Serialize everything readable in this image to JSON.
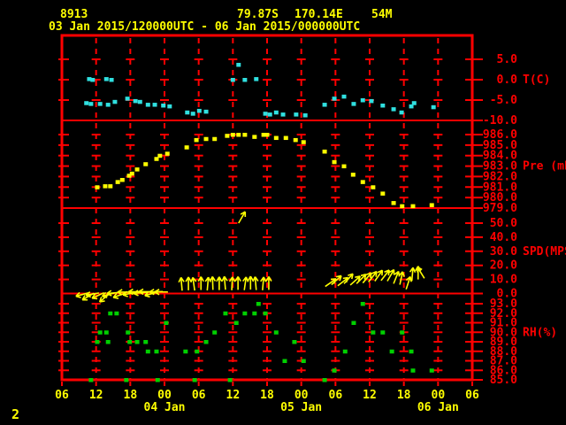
{
  "header": {
    "station_id": "8913",
    "latitude": "79.87S",
    "longitude": "170.14E",
    "elevation": "54M",
    "period": "03 Jan 2015/120000UTC - 06 Jan 2015/000000UTC"
  },
  "footer": {
    "page_number": "2"
  },
  "colors": {
    "background": "#000000",
    "frame": "#ff0000",
    "axis_text": "#ff0000",
    "time_text": "#ffff00",
    "temperature": "#30e0e0",
    "pressure": "#ffff00",
    "wind": "#ffff00",
    "humidity": "#00d000"
  },
  "chart_data": {
    "type": "scatter",
    "subtype": "meteogram-4-panel",
    "x_axis": {
      "tick_interval_hours": 6,
      "hours_span": 72,
      "tick_labels": [
        "06",
        "12",
        "18",
        "00",
        "06",
        "12",
        "18",
        "00",
        "06",
        "12",
        "18",
        "00",
        "06"
      ],
      "date_labels": [
        {
          "label": "04 Jan",
          "tick_index": 3
        },
        {
          "label": "05 Jan",
          "tick_index": 7
        },
        {
          "label": "06 Jan",
          "tick_index": 11
        }
      ]
    },
    "panels": [
      {
        "id": "temperature",
        "label": "T(C)",
        "label_at_value": 0,
        "type": "scatter",
        "color": "#30e0e0",
        "axis_ticks": [
          {
            "v": 5,
            "label": "5.0"
          },
          {
            "v": 0,
            "label": "0.0"
          },
          {
            "v": -5,
            "label": "-5.0"
          },
          {
            "v": -10,
            "label": "-10.0"
          }
        ],
        "points": [
          {
            "h": 4.8,
            "v": 0.2
          },
          {
            "h": 5.4,
            "v": 0
          },
          {
            "h": 7.8,
            "v": 0.2
          },
          {
            "h": 8.7,
            "v": 0
          },
          {
            "h": 4.3,
            "v": -5.7
          },
          {
            "h": 5.1,
            "v": -5.9
          },
          {
            "h": 6.7,
            "v": -5.9
          },
          {
            "h": 8.1,
            "v": -6.1
          },
          {
            "h": 9.3,
            "v": -5.4
          },
          {
            "h": 11.5,
            "v": -4.6
          },
          {
            "h": 12.9,
            "v": -5.2
          },
          {
            "h": 13.7,
            "v": -5.4
          },
          {
            "h": 15.1,
            "v": -6.1
          },
          {
            "h": 16.3,
            "v": -6.1
          },
          {
            "h": 17.8,
            "v": -6.3
          },
          {
            "h": 18.9,
            "v": -6.5
          },
          {
            "h": 22.0,
            "v": -8.0
          },
          {
            "h": 23.0,
            "v": -8.3
          },
          {
            "h": 24.1,
            "v": -7.6
          },
          {
            "h": 25.3,
            "v": -7.8
          },
          {
            "h": 30.0,
            "v": 0
          },
          {
            "h": 31.0,
            "v": 3.7
          },
          {
            "h": 32.1,
            "v": 0
          },
          {
            "h": 34.1,
            "v": 0.2
          },
          {
            "h": 35.7,
            "v": -8.3
          },
          {
            "h": 36.5,
            "v": -8.5
          },
          {
            "h": 37.6,
            "v": -8.0
          },
          {
            "h": 38.8,
            "v": -8.5
          },
          {
            "h": 41.1,
            "v": -8.5
          },
          {
            "h": 42.7,
            "v": -8.7
          },
          {
            "h": 46.1,
            "v": -6.1
          },
          {
            "h": 47.8,
            "v": -4.6
          },
          {
            "h": 49.5,
            "v": -4.1
          },
          {
            "h": 51.2,
            "v": -5.9
          },
          {
            "h": 52.8,
            "v": -5.0
          },
          {
            "h": 54.3,
            "v": -5.2
          },
          {
            "h": 56.3,
            "v": -6.3
          },
          {
            "h": 58.2,
            "v": -7.2
          },
          {
            "h": 59.6,
            "v": -8.0
          },
          {
            "h": 61.3,
            "v": -6.5
          },
          {
            "h": 61.8,
            "v": -5.7
          },
          {
            "h": 65.2,
            "v": -6.7
          }
        ]
      },
      {
        "id": "pressure",
        "label": "Pre (mb)",
        "label_at_value": 983,
        "type": "scatter",
        "color": "#ffff00",
        "axis_ticks": [
          {
            "v": 986,
            "label": "986.0"
          },
          {
            "v": 985,
            "label": "985.0"
          },
          {
            "v": 984,
            "label": "984.0"
          },
          {
            "v": 983,
            "label": "983.0"
          },
          {
            "v": 982,
            "label": "982.0"
          },
          {
            "v": 981,
            "label": "981.0"
          },
          {
            "v": 980,
            "label": "980.0"
          },
          {
            "v": 979,
            "label": "979.0"
          }
        ],
        "points": [
          {
            "h": 6.2,
            "v": 981.0
          },
          {
            "h": 7.6,
            "v": 981.1
          },
          {
            "h": 8.5,
            "v": 981.1
          },
          {
            "h": 9.8,
            "v": 981.5
          },
          {
            "h": 10.6,
            "v": 981.7
          },
          {
            "h": 11.8,
            "v": 982.1
          },
          {
            "h": 12.3,
            "v": 982.3
          },
          {
            "h": 13.2,
            "v": 982.7
          },
          {
            "h": 14.7,
            "v": 983.2
          },
          {
            "h": 16.6,
            "v": 983.7
          },
          {
            "h": 17.2,
            "v": 984.0
          },
          {
            "h": 18.5,
            "v": 984.2
          },
          {
            "h": 21.9,
            "v": 984.8
          },
          {
            "h": 23.6,
            "v": 985.5
          },
          {
            "h": 25.3,
            "v": 985.6
          },
          {
            "h": 26.8,
            "v": 985.6
          },
          {
            "h": 29.0,
            "v": 985.9
          },
          {
            "h": 30.0,
            "v": 986.0
          },
          {
            "h": 31.0,
            "v": 986.0
          },
          {
            "h": 32.1,
            "v": 986.0
          },
          {
            "h": 33.8,
            "v": 985.8
          },
          {
            "h": 35.4,
            "v": 986.0
          },
          {
            "h": 36.0,
            "v": 986.0
          },
          {
            "h": 37.6,
            "v": 985.7
          },
          {
            "h": 39.3,
            "v": 985.7
          },
          {
            "h": 41.0,
            "v": 985.5
          },
          {
            "h": 42.4,
            "v": 985.3
          },
          {
            "h": 46.1,
            "v": 984.4
          },
          {
            "h": 47.8,
            "v": 983.4
          },
          {
            "h": 49.5,
            "v": 983.0
          },
          {
            "h": 51.1,
            "v": 982.2
          },
          {
            "h": 52.8,
            "v": 981.5
          },
          {
            "h": 54.6,
            "v": 981.0
          },
          {
            "h": 56.3,
            "v": 980.4
          },
          {
            "h": 58.2,
            "v": 979.5
          },
          {
            "h": 59.7,
            "v": 979.2
          },
          {
            "h": 61.6,
            "v": 979.2
          },
          {
            "h": 64.9,
            "v": 979.3
          }
        ]
      },
      {
        "id": "wind_speed",
        "label": "SPD(MPS)",
        "label_at_value": 30,
        "type": "wind-vector",
        "color": "#ffff00",
        "axis_ticks": [
          {
            "v": 50,
            "label": "50.0"
          },
          {
            "v": 40,
            "label": "40.0"
          },
          {
            "v": 30,
            "label": "30.0"
          },
          {
            "v": 20,
            "label": "20.0"
          },
          {
            "v": 10,
            "label": "10.0"
          },
          {
            "v": 0,
            "label": "0.0"
          }
        ],
        "points": [
          {
            "h": 4.7,
            "v": 0.5,
            "dir": 255
          },
          {
            "h": 5.6,
            "v": 0.2,
            "dir": 240
          },
          {
            "h": 6.5,
            "v": 0.4,
            "dir": 260
          },
          {
            "h": 7.4,
            "v": 0.6,
            "dir": 245
          },
          {
            "h": 8.4,
            "v": 0.1,
            "dir": 230
          },
          {
            "h": 9.3,
            "v": 0.5,
            "dir": 255
          },
          {
            "h": 10.2,
            "v": 0.8,
            "dir": 265
          },
          {
            "h": 11.2,
            "v": 0.4,
            "dir": 250
          },
          {
            "h": 12.1,
            "v": 1.0,
            "dir": 270
          },
          {
            "h": 13.0,
            "v": 0.7,
            "dir": 260
          },
          {
            "h": 14.0,
            "v": 1.2,
            "dir": 270
          },
          {
            "h": 14.9,
            "v": 0.9,
            "dir": 265
          },
          {
            "h": 15.8,
            "v": 1.3,
            "dir": 270
          },
          {
            "h": 16.8,
            "v": 1.0,
            "dir": 255
          },
          {
            "h": 17.7,
            "v": 1.4,
            "dir": 268
          },
          {
            "h": 18.6,
            "v": 1.1,
            "dir": 270
          },
          {
            "h": 21.1,
            "v": 2.0,
            "dir": 355
          },
          {
            "h": 22.2,
            "v": 2.3,
            "dir": 0
          },
          {
            "h": 23.3,
            "v": 2.1,
            "dir": 352
          },
          {
            "h": 24.4,
            "v": 2.5,
            "dir": 0
          },
          {
            "h": 25.5,
            "v": 2.2,
            "dir": 5
          },
          {
            "h": 26.5,
            "v": 2.6,
            "dir": 358
          },
          {
            "h": 27.6,
            "v": 2.4,
            "dir": 0
          },
          {
            "h": 28.7,
            "v": 2.7,
            "dir": 355
          },
          {
            "h": 29.8,
            "v": 2.3,
            "dir": 3
          },
          {
            "h": 30.9,
            "v": 2.6,
            "dir": 0
          },
          {
            "h": 32.0,
            "v": 2.4,
            "dir": 8
          },
          {
            "h": 33.1,
            "v": 2.8,
            "dir": 0
          },
          {
            "h": 34.1,
            "v": 2.5,
            "dir": 355
          },
          {
            "h": 35.2,
            "v": 2.3,
            "dir": 5
          },
          {
            "h": 36.3,
            "v": 2.6,
            "dir": 0
          },
          {
            "h": 31.0,
            "v": 50,
            "dir": 30
          },
          {
            "h": 46.2,
            "v": 5.0,
            "dir": 55
          },
          {
            "h": 47.3,
            "v": 6.3,
            "dir": 48
          },
          {
            "h": 48.4,
            "v": 5.5,
            "dir": 52
          },
          {
            "h": 49.5,
            "v": 7.0,
            "dir": 42
          },
          {
            "h": 50.6,
            "v": 6.0,
            "dir": 48
          },
          {
            "h": 51.7,
            "v": 7.0,
            "dir": 45
          },
          {
            "h": 52.8,
            "v": 7.5,
            "dir": 40
          },
          {
            "h": 53.8,
            "v": 8.2,
            "dir": 38
          },
          {
            "h": 54.9,
            "v": 8.8,
            "dir": 35
          },
          {
            "h": 56.0,
            "v": 9.2,
            "dir": 38
          },
          {
            "h": 57.1,
            "v": 8.8,
            "dir": 30
          },
          {
            "h": 58.2,
            "v": 7.0,
            "dir": 22
          },
          {
            "h": 59.3,
            "v": 6.3,
            "dir": 12
          },
          {
            "h": 60.4,
            "v": 3.0,
            "dir": 18
          },
          {
            "h": 61.4,
            "v": 9.0,
            "dir": 5
          },
          {
            "h": 62.5,
            "v": 10.0,
            "dir": 0
          },
          {
            "h": 63.6,
            "v": 10.8,
            "dir": -32
          }
        ]
      },
      {
        "id": "relative_humidity",
        "label": "RH(%)",
        "label_at_value": 90,
        "type": "scatter",
        "color": "#00d000",
        "axis_ticks": [
          {
            "v": 93,
            "label": "93.0"
          },
          {
            "v": 92,
            "label": "92.0"
          },
          {
            "v": 91,
            "label": "91.0"
          },
          {
            "v": 90,
            "label": "90.0"
          },
          {
            "v": 89,
            "label": "89.0"
          },
          {
            "v": 88,
            "label": "88.0"
          },
          {
            "v": 87,
            "label": "87.0"
          },
          {
            "v": 86,
            "label": "86.0"
          },
          {
            "v": 85,
            "label": "85.0"
          }
        ],
        "points": [
          {
            "h": 5.1,
            "v": 85
          },
          {
            "h": 6.2,
            "v": 89
          },
          {
            "h": 6.7,
            "v": 90
          },
          {
            "h": 7.8,
            "v": 90
          },
          {
            "h": 8.1,
            "v": 89
          },
          {
            "h": 8.5,
            "v": 92
          },
          {
            "h": 9.6,
            "v": 92
          },
          {
            "h": 11.3,
            "v": 85
          },
          {
            "h": 11.6,
            "v": 90
          },
          {
            "h": 11.9,
            "v": 89
          },
          {
            "h": 13.2,
            "v": 89
          },
          {
            "h": 14.7,
            "v": 89
          },
          {
            "h": 15.1,
            "v": 88
          },
          {
            "h": 16.6,
            "v": 88
          },
          {
            "h": 16.8,
            "v": 85
          },
          {
            "h": 18.3,
            "v": 91
          },
          {
            "h": 21.7,
            "v": 88
          },
          {
            "h": 23.3,
            "v": 85
          },
          {
            "h": 23.7,
            "v": 88
          },
          {
            "h": 25.3,
            "v": 89
          },
          {
            "h": 26.8,
            "v": 90
          },
          {
            "h": 28.7,
            "v": 92
          },
          {
            "h": 29.5,
            "v": 85
          },
          {
            "h": 30.6,
            "v": 91
          },
          {
            "h": 32.1,
            "v": 92
          },
          {
            "h": 33.8,
            "v": 92
          },
          {
            "h": 34.5,
            "v": 93
          },
          {
            "h": 35.7,
            "v": 92
          },
          {
            "h": 37.6,
            "v": 90
          },
          {
            "h": 39.1,
            "v": 87
          },
          {
            "h": 40.8,
            "v": 89
          },
          {
            "h": 42.4,
            "v": 87
          },
          {
            "h": 46.1,
            "v": 85
          },
          {
            "h": 47.8,
            "v": 86
          },
          {
            "h": 49.7,
            "v": 88
          },
          {
            "h": 51.2,
            "v": 91
          },
          {
            "h": 52.8,
            "v": 93
          },
          {
            "h": 54.6,
            "v": 90
          },
          {
            "h": 56.3,
            "v": 90
          },
          {
            "h": 57.9,
            "v": 88
          },
          {
            "h": 59.7,
            "v": 90
          },
          {
            "h": 61.3,
            "v": 88
          },
          {
            "h": 61.6,
            "v": 86
          },
          {
            "h": 64.9,
            "v": 86
          }
        ]
      }
    ]
  }
}
